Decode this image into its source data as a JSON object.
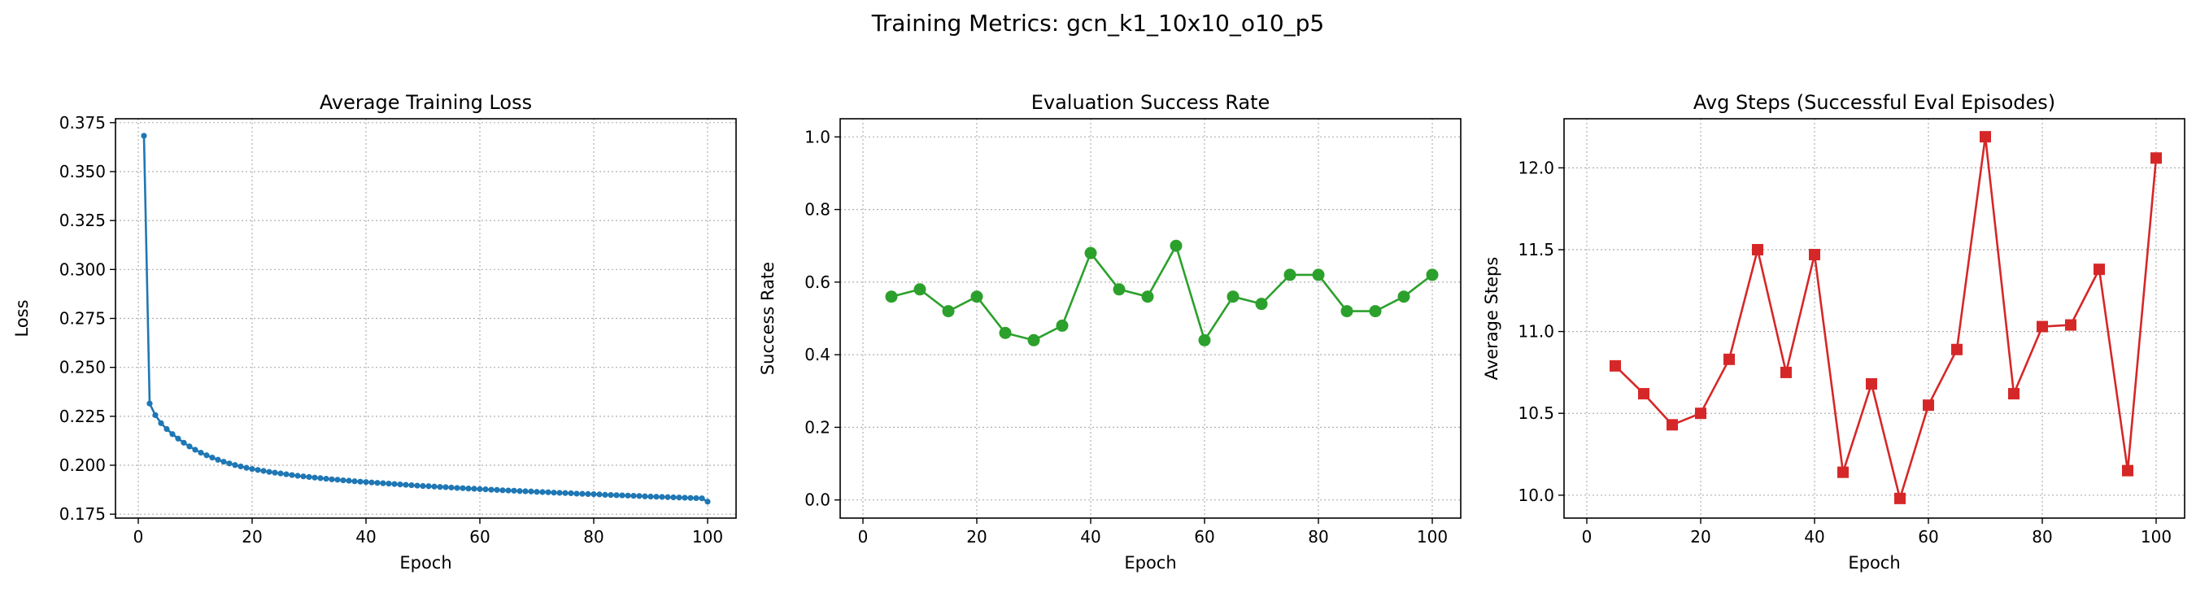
{
  "suptitle": "Training Metrics: gcn_k1_10x10_o10_p5",
  "chart_data": [
    {
      "type": "line",
      "title": "Average Training Loss",
      "xlabel": "Epoch",
      "ylabel": "Loss",
      "color": "#1f77b4",
      "marker": "small-circle",
      "xlim": [
        -4,
        105
      ],
      "ylim": [
        0.173,
        0.377
      ],
      "xticks": [
        0,
        20,
        40,
        60,
        80,
        100
      ],
      "yticks": [
        0.175,
        0.2,
        0.225,
        0.25,
        0.275,
        0.3,
        0.325,
        0.35,
        0.375
      ],
      "ytick_labels": [
        "0.175",
        "0.200",
        "0.225",
        "0.250",
        "0.275",
        "0.300",
        "0.325",
        "0.350",
        "0.375"
      ],
      "grid": true,
      "x": [
        1,
        2,
        3,
        4,
        5,
        6,
        7,
        8,
        9,
        10,
        11,
        12,
        13,
        14,
        15,
        16,
        17,
        18,
        19,
        20,
        21,
        22,
        23,
        24,
        25,
        26,
        27,
        28,
        29,
        30,
        31,
        32,
        33,
        34,
        35,
        36,
        37,
        38,
        39,
        40,
        41,
        42,
        43,
        44,
        45,
        46,
        47,
        48,
        49,
        50,
        51,
        52,
        53,
        54,
        55,
        56,
        57,
        58,
        59,
        60,
        61,
        62,
        63,
        64,
        65,
        66,
        67,
        68,
        69,
        70,
        71,
        72,
        73,
        74,
        75,
        76,
        77,
        78,
        79,
        80,
        81,
        82,
        83,
        84,
        85,
        86,
        87,
        88,
        89,
        90,
        91,
        92,
        93,
        94,
        95,
        96,
        97,
        98,
        99,
        100
      ],
      "y": [
        0.3683,
        0.2315,
        0.2256,
        0.2215,
        0.2185,
        0.2159,
        0.2136,
        0.2115,
        0.2096,
        0.2079,
        0.2064,
        0.2051,
        0.2039,
        0.2028,
        0.2018,
        0.2009,
        0.2001,
        0.1994,
        0.1987,
        0.1981,
        0.1976,
        0.1971,
        0.1966,
        0.1962,
        0.1958,
        0.1954,
        0.195,
        0.1946,
        0.1943,
        0.194,
        0.1937,
        0.1934,
        0.1931,
        0.1928,
        0.1926,
        0.1923,
        0.1921,
        0.1918,
        0.1916,
        0.1914,
        0.1912,
        0.191,
        0.1908,
        0.1906,
        0.1904,
        0.1902,
        0.19,
        0.1898,
        0.1896,
        0.1894,
        0.1893,
        0.1891,
        0.1889,
        0.1888,
        0.1886,
        0.1884,
        0.1883,
        0.1881,
        0.188,
        0.1878,
        0.1877,
        0.1875,
        0.1874,
        0.1872,
        0.1871,
        0.187,
        0.1868,
        0.1867,
        0.1866,
        0.1864,
        0.1863,
        0.1862,
        0.186,
        0.1859,
        0.1858,
        0.1857,
        0.1855,
        0.1854,
        0.1853,
        0.1852,
        0.1851,
        0.1849,
        0.1848,
        0.1847,
        0.1846,
        0.1845,
        0.1844,
        0.1843,
        0.1841,
        0.184,
        0.1839,
        0.1838,
        0.1837,
        0.1836,
        0.1835,
        0.1834,
        0.1833,
        0.1832,
        0.1831,
        0.1814
      ]
    },
    {
      "type": "line",
      "title": "Evaluation Success Rate",
      "xlabel": "Epoch",
      "ylabel": "Success Rate",
      "color": "#2ca02c",
      "marker": "circle",
      "xlim": [
        -4,
        105
      ],
      "ylim": [
        -0.05,
        1.05
      ],
      "xticks": [
        0,
        20,
        40,
        60,
        80,
        100
      ],
      "yticks": [
        0.0,
        0.2,
        0.4,
        0.6,
        0.8,
        1.0
      ],
      "ytick_labels": [
        "0.0",
        "0.2",
        "0.4",
        "0.6",
        "0.8",
        "1.0"
      ],
      "grid": true,
      "x": [
        5,
        10,
        15,
        20,
        25,
        30,
        35,
        40,
        45,
        50,
        55,
        60,
        65,
        70,
        75,
        80,
        85,
        90,
        95,
        100
      ],
      "y": [
        0.56,
        0.58,
        0.52,
        0.56,
        0.46,
        0.44,
        0.48,
        0.68,
        0.58,
        0.56,
        0.7,
        0.44,
        0.56,
        0.54,
        0.62,
        0.62,
        0.52,
        0.52,
        0.56,
        0.62
      ]
    },
    {
      "type": "line",
      "title": "Avg Steps (Successful Eval Episodes)",
      "xlabel": "Epoch",
      "ylabel": "Average Steps",
      "color": "#d62728",
      "marker": "square",
      "xlim": [
        -4,
        105
      ],
      "ylim": [
        9.86,
        12.3
      ],
      "xticks": [
        0,
        20,
        40,
        60,
        80,
        100
      ],
      "yticks": [
        10.0,
        10.5,
        11.0,
        11.5,
        12.0
      ],
      "ytick_labels": [
        "10.0",
        "10.5",
        "11.0",
        "11.5",
        "12.0"
      ],
      "grid": true,
      "x": [
        5,
        10,
        15,
        20,
        25,
        30,
        35,
        40,
        45,
        50,
        55,
        60,
        65,
        70,
        75,
        80,
        85,
        90,
        95,
        100
      ],
      "y": [
        10.79,
        10.62,
        10.43,
        10.5,
        10.83,
        11.5,
        10.75,
        11.47,
        10.14,
        10.68,
        9.98,
        10.55,
        10.89,
        12.19,
        10.62,
        11.03,
        11.04,
        11.38,
        10.15,
        12.06
      ]
    }
  ]
}
